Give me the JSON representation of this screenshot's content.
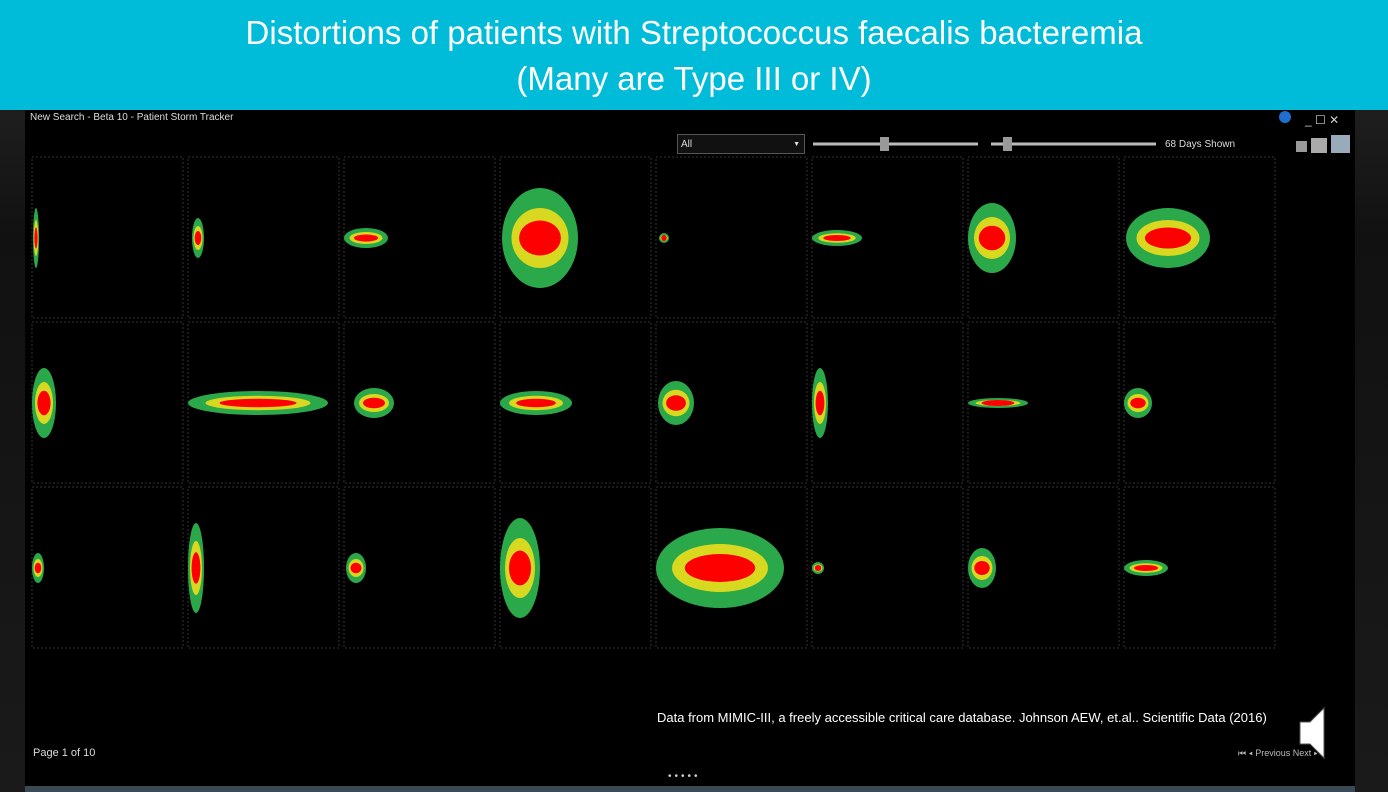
{
  "slide": {
    "title_line1": "Distortions of patients with Streptococcus faecalis bacteremia",
    "title_line2": "(Many are Type III or IV)",
    "citation": "Data from MIMIC-III, a freely accessible critical care database. Johnson AEW, et.al.. Scientific Data (2016)"
  },
  "window": {
    "title": "New Search - Beta 10 - Patient Storm Tracker",
    "filter": "All",
    "days_shown": "68 Days Shown",
    "page": "Page 1 of 10",
    "previous": "Previous",
    "next": "Next"
  }
}
